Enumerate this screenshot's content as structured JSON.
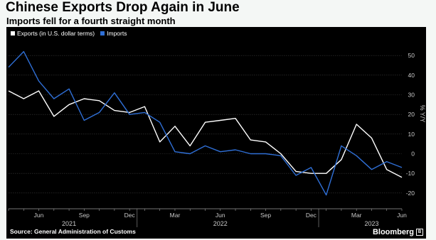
{
  "header": {
    "title": "Chinese Exports Drop Again in June",
    "subtitle": "Imports fell for a fourth straight month"
  },
  "footer": {
    "source": "Source: General Administration of Customs",
    "brand": "Bloomberg"
  },
  "colors": {
    "background": "#000000",
    "exports": "#ffffff",
    "imports": "#2f6fd6",
    "page": "#f4f7f5"
  },
  "chart_data": {
    "type": "line",
    "title": "Chinese Exports Drop Again in June",
    "subtitle": "Imports fell for a fourth straight month",
    "ylabel": "% Y/Y",
    "ylim": [
      -28,
      58
    ],
    "yticks": [
      50,
      40,
      30,
      20,
      10,
      0,
      -10,
      -20
    ],
    "grid": true,
    "legend_position": "top-left",
    "x": [
      "2021-04",
      "2021-05",
      "2021-06",
      "2021-07",
      "2021-08",
      "2021-09",
      "2021-10",
      "2021-11",
      "2021-12",
      "2022-01",
      "2022-02",
      "2022-03",
      "2022-04",
      "2022-05",
      "2022-06",
      "2022-07",
      "2022-08",
      "2022-09",
      "2022-10",
      "2022-11",
      "2022-12",
      "2023-01",
      "2023-02",
      "2023-03",
      "2023-04",
      "2023-05",
      "2023-06"
    ],
    "x_tick_labels": [
      {
        "label": "Jun",
        "x": "2021-06"
      },
      {
        "label": "Sep",
        "x": "2021-09"
      },
      {
        "label": "Dec",
        "x": "2021-12"
      },
      {
        "label": "Mar",
        "x": "2022-03"
      },
      {
        "label": "Jun",
        "x": "2022-06"
      },
      {
        "label": "Sep",
        "x": "2022-09"
      },
      {
        "label": "Dec",
        "x": "2022-12"
      },
      {
        "label": "Mar",
        "x": "2023-03"
      },
      {
        "label": "Jun",
        "x": "2023-06"
      }
    ],
    "year_labels": [
      {
        "label": "2021",
        "x": "2021-08"
      },
      {
        "label": "2022",
        "x": "2022-06"
      },
      {
        "label": "2023",
        "x": "2023-04"
      }
    ],
    "series": [
      {
        "name": "Exports (in U.S. dollar terms)",
        "color": "#ffffff",
        "values": [
          32,
          28,
          32,
          19,
          25,
          28,
          27,
          22,
          21,
          24,
          6,
          14,
          4,
          16,
          17,
          18,
          7,
          6,
          0,
          -9,
          -10,
          -10,
          -3,
          15,
          8,
          -8,
          -12
        ]
      },
      {
        "name": "Imports",
        "color": "#2f6fd6",
        "values": [
          44,
          52,
          37,
          28,
          33,
          17,
          21,
          31,
          20,
          21,
          16,
          1,
          0,
          4,
          1,
          2,
          0,
          0,
          -1,
          -11,
          -7,
          -21,
          4,
          -1,
          -8,
          -4,
          -7
        ]
      }
    ]
  }
}
